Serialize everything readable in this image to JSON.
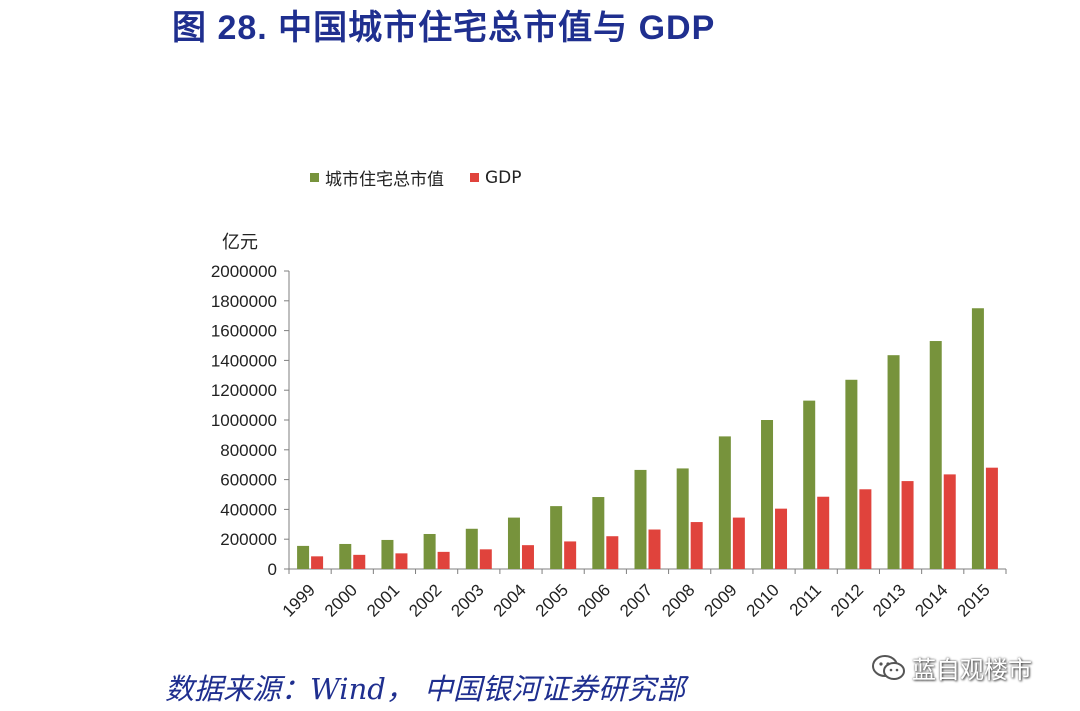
{
  "figure": {
    "title": "图 28. 中国城市住宅总市值与 GDP",
    "source": "数据来源：Wind，  中国银河证券研究部",
    "watermark": "蓝自观楼市"
  },
  "colors": {
    "title": "#1f2f8f",
    "housing_bar": "#77933c",
    "gdp_bar": "#e0433c",
    "axis": "#7f7f7f",
    "source_text": "#1f2f8f"
  },
  "chart_data": {
    "type": "bar",
    "title": "",
    "xlabel": "",
    "ylabel": "亿元",
    "ylim": [
      0,
      2000000
    ],
    "yticks": [
      0,
      200000,
      400000,
      600000,
      800000,
      1000000,
      1200000,
      1400000,
      1600000,
      1800000,
      2000000
    ],
    "ytick_labels": [
      "0",
      "200000",
      "400000",
      "600000",
      "800000",
      "1000000",
      "1200000",
      "1400000",
      "1600000",
      "1800000",
      "2000000"
    ],
    "grid": false,
    "legend_position": "top",
    "categories": [
      "1999",
      "2000",
      "2001",
      "2002",
      "2003",
      "2004",
      "2005",
      "2006",
      "2007",
      "2008",
      "2009",
      "2010",
      "2011",
      "2012",
      "2013",
      "2014",
      "2015"
    ],
    "series": [
      {
        "name": "城市住宅总市值",
        "color": "#77933c",
        "values": [
          155000,
          168000,
          195000,
          235000,
          270000,
          345000,
          422000,
          483000,
          665000,
          675000,
          890000,
          1000000,
          1130000,
          1270000,
          1435000,
          1530000,
          1750000
        ]
      },
      {
        "name": "GDP",
        "color": "#e0433c",
        "values": [
          85000,
          95000,
          105000,
          115000,
          132000,
          160000,
          185000,
          220000,
          265000,
          315000,
          345000,
          405000,
          485000,
          535000,
          590000,
          635000,
          680000
        ]
      }
    ]
  }
}
